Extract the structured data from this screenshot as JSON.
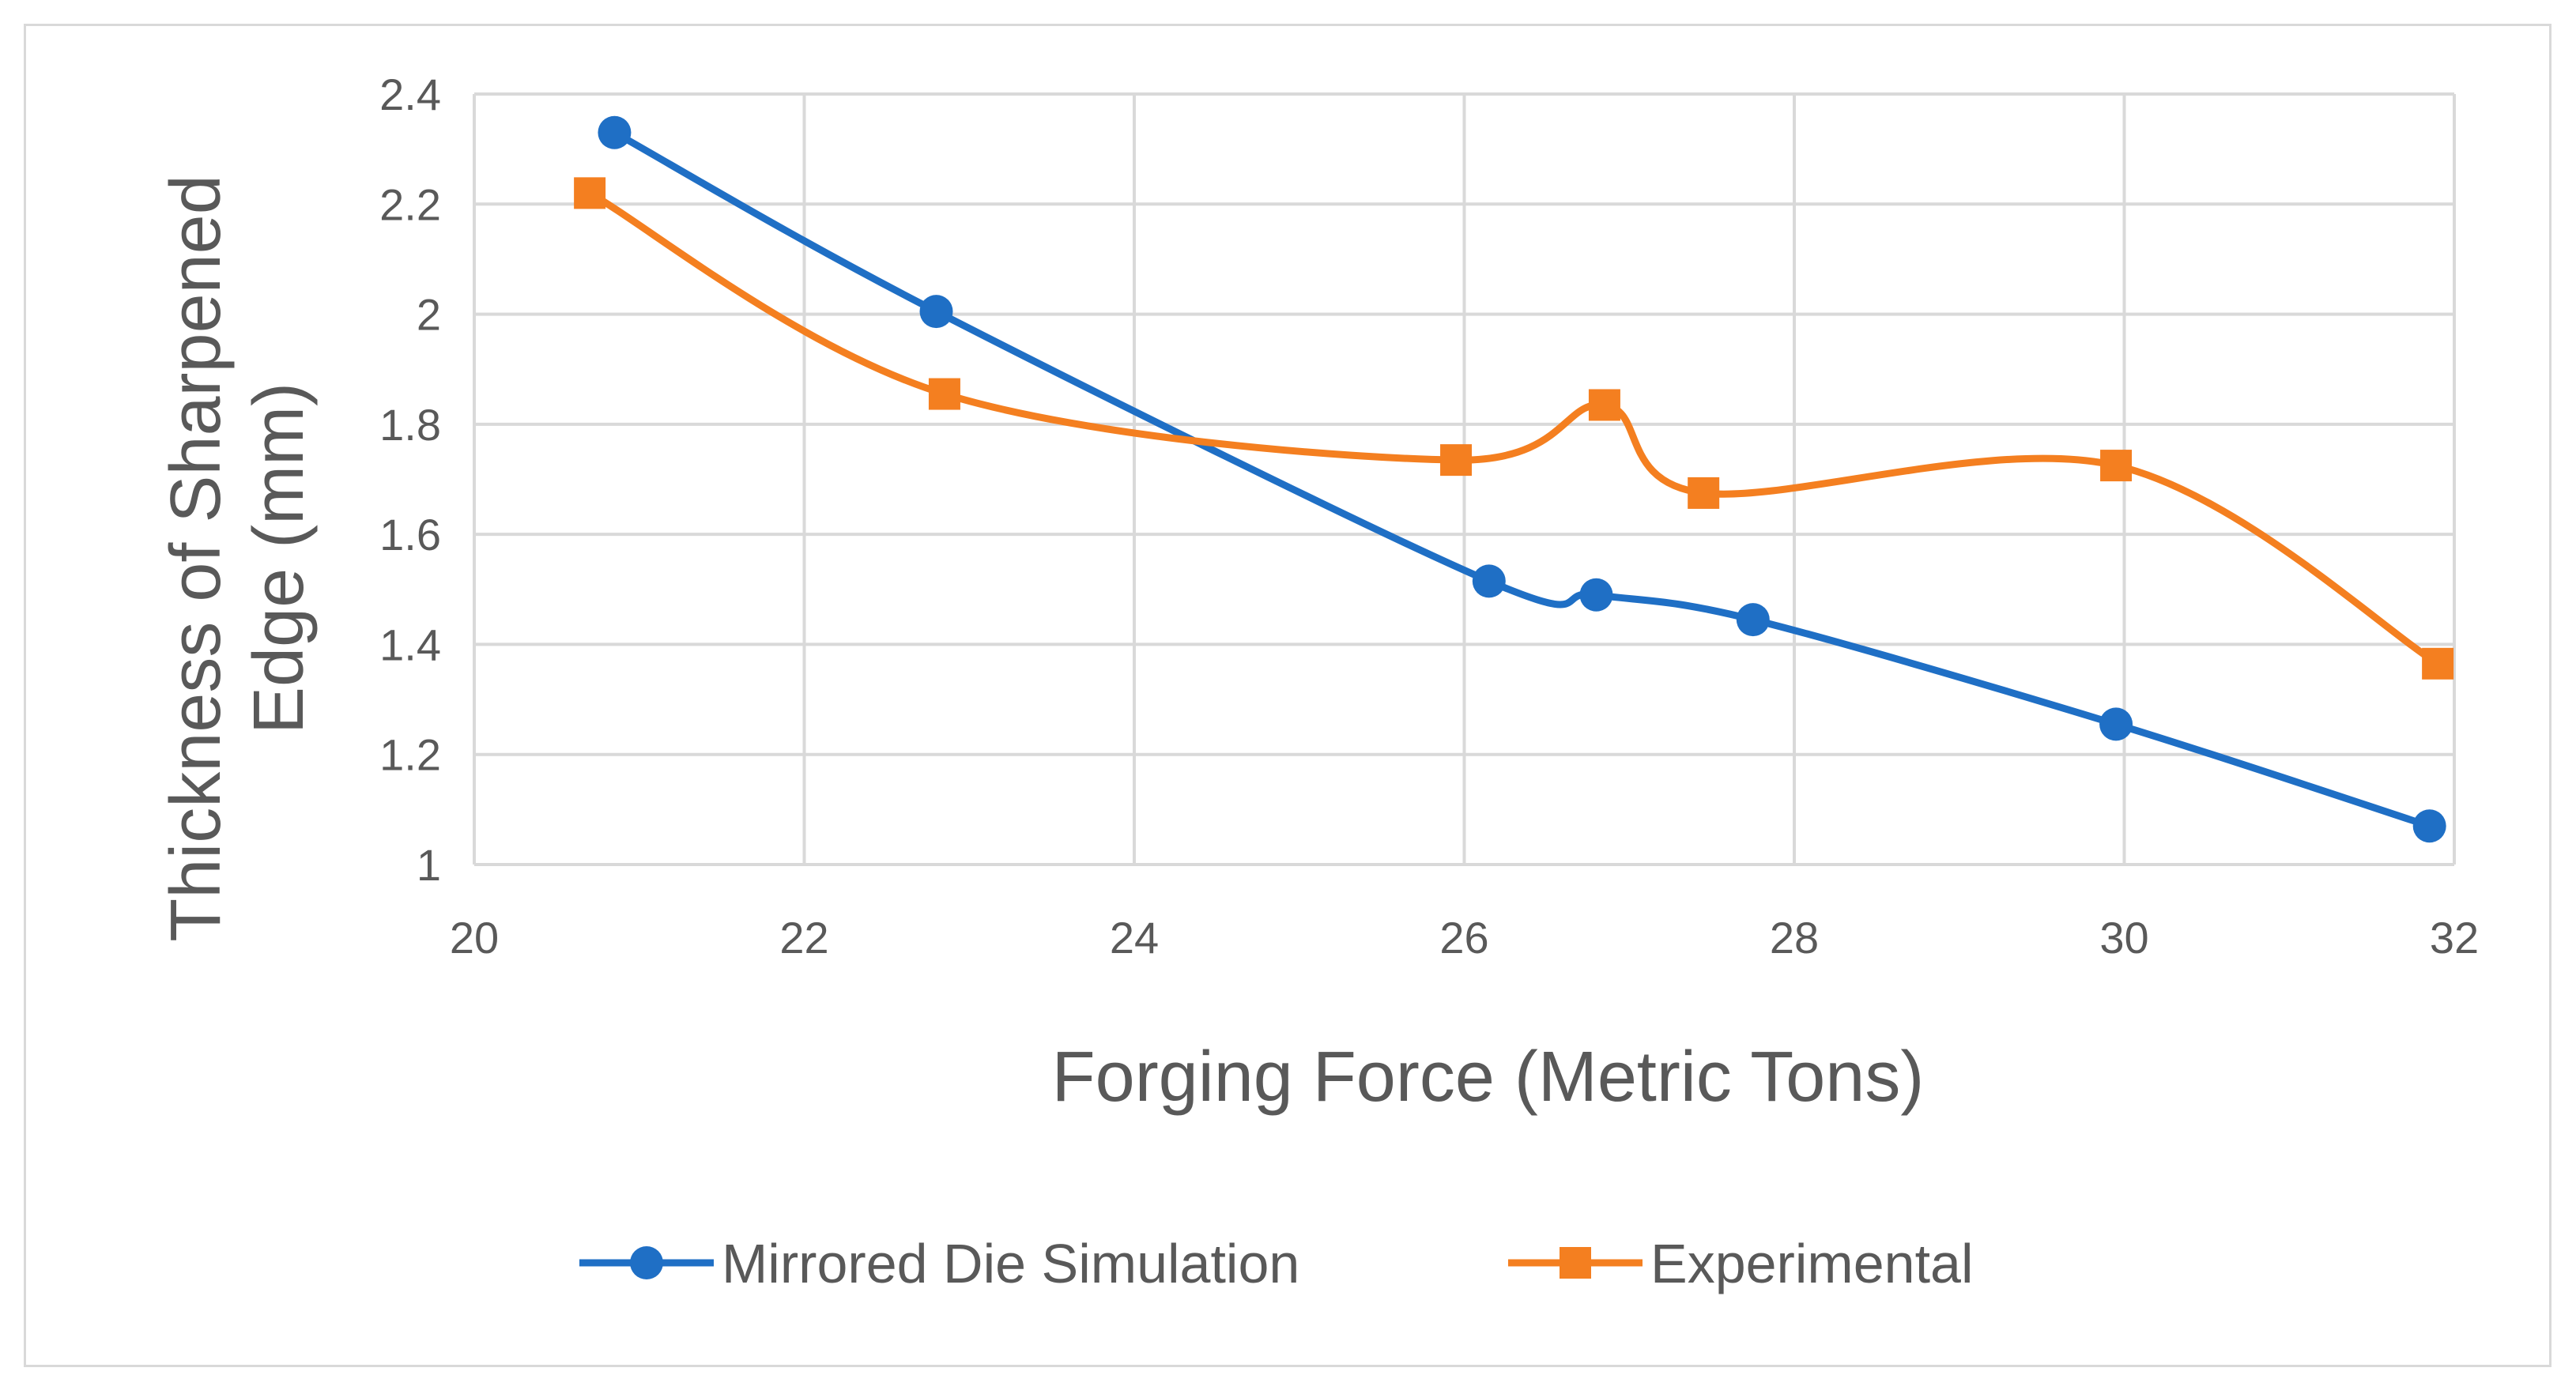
{
  "chart_data": {
    "type": "line",
    "title": "",
    "xlabel": "Forging Force (Metric Tons)",
    "ylabel_lines": [
      "Thickness of Sharpened",
      "Edge (mm)"
    ],
    "xlim": [
      20,
      32
    ],
    "ylim": [
      1,
      2.4
    ],
    "x_ticks": [
      20,
      22,
      24,
      26,
      28,
      30,
      32
    ],
    "y_ticks": [
      1,
      1.2,
      1.4,
      1.6,
      1.8,
      2,
      2.2,
      2.4
    ],
    "x_tick_labels": [
      "20",
      "22",
      "24",
      "26",
      "28",
      "30",
      "32"
    ],
    "y_tick_labels": [
      "1",
      "1.2",
      "1.4",
      "1.6",
      "1.8",
      "2",
      "2.2",
      "2.4"
    ],
    "grid": true,
    "legend_position": "bottom",
    "series": [
      {
        "name": "Mirrored Die Simulation",
        "color": "#1f6fc5",
        "marker": "circle",
        "x": [
          20.85,
          22.8,
          26.15,
          26.8,
          27.75,
          29.95,
          31.85
        ],
        "y": [
          2.33,
          2.005,
          1.515,
          1.49,
          1.445,
          1.255,
          1.07
        ]
      },
      {
        "name": "Experimental",
        "color": "#f47f20",
        "marker": "square",
        "x": [
          20.7,
          22.85,
          25.95,
          26.85,
          27.45,
          29.95,
          31.9
        ],
        "y": [
          2.22,
          1.855,
          1.735,
          1.835,
          1.675,
          1.725,
          1.365
        ]
      }
    ]
  }
}
